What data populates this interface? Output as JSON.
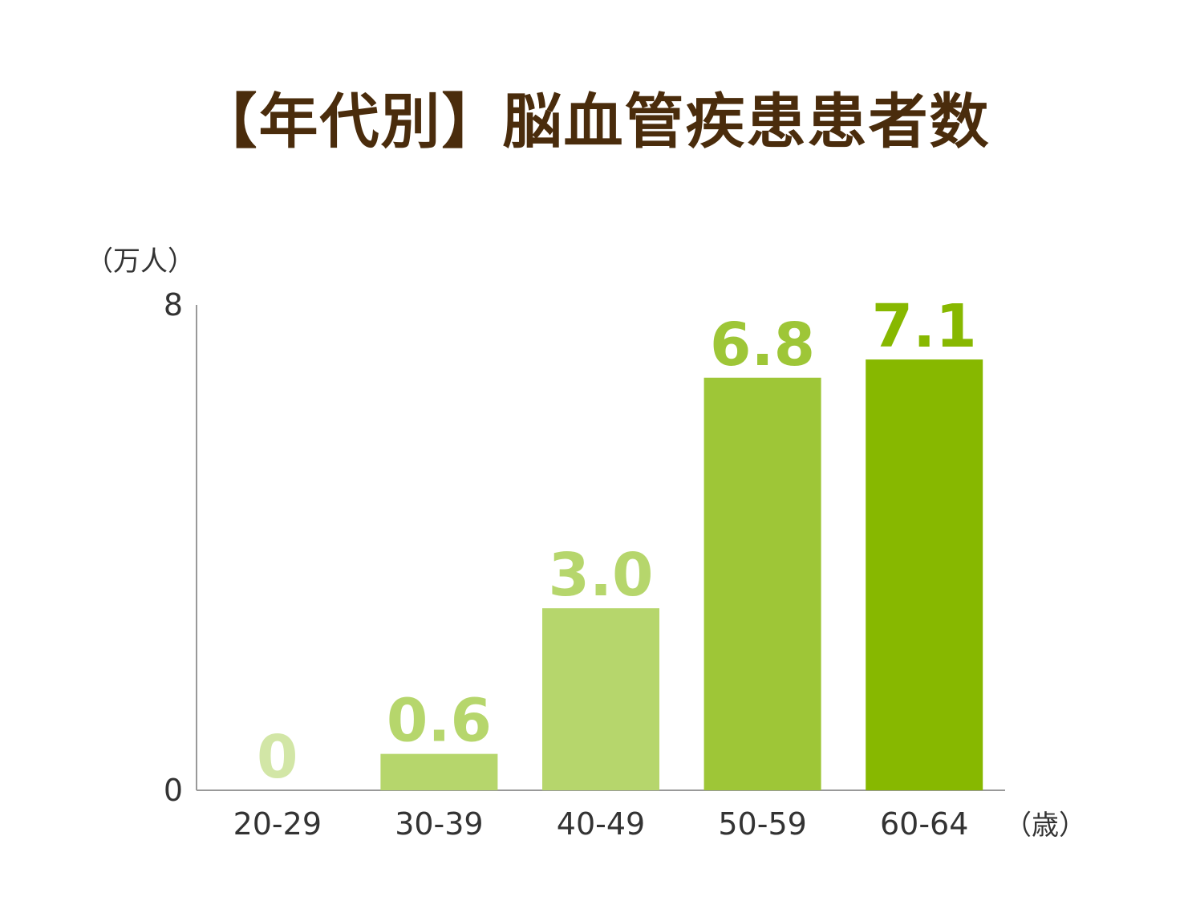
{
  "chart_data": {
    "type": "bar",
    "title": "【年代別】脳血管疾患患者数",
    "ylabel": "（万人）",
    "xlabel": "（歳）",
    "ylim": [
      0,
      8
    ],
    "yticks": [
      "0",
      "8"
    ],
    "categories": [
      "20-29",
      "30-39",
      "40-49",
      "50-59",
      "60-64"
    ],
    "values": [
      0,
      0.6,
      3.0,
      6.8,
      7.1
    ],
    "value_labels": [
      "0",
      "0.6",
      "3.0",
      "6.8",
      "7.1"
    ],
    "colors": [
      "#d2e6a6",
      "#b6d66c",
      "#b6d66c",
      "#9ec637",
      "#87b800"
    ],
    "grid": false,
    "legend": "none"
  }
}
